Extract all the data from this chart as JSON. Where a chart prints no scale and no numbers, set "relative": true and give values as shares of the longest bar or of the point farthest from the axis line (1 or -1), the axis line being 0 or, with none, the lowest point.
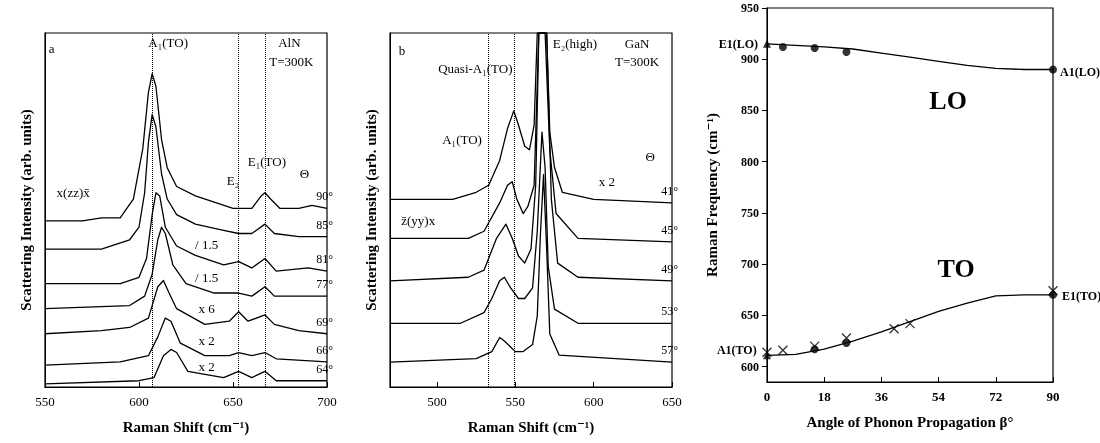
{
  "chart_data": [
    {
      "type": "line",
      "relative": true,
      "xlabel": "Raman Shift (cm⁻¹)",
      "ylabel": "Scattering Intensity (arb. units)",
      "xlim": [
        550,
        700
      ],
      "xticks": [
        550,
        600,
        650,
        700
      ],
      "ref_lines": [
        {
          "axis": "x",
          "value": 607,
          "label": null,
          "line_style": "dotted",
          "color": "#000000"
        },
        {
          "axis": "x",
          "value": 653,
          "label": null,
          "line_style": "dotted",
          "color": "#000000"
        },
        {
          "axis": "x",
          "value": 667,
          "label": null,
          "line_style": "dotted",
          "color": "#000000"
        }
      ],
      "annotations": [
        "a",
        "A₁(TO)",
        "AlN",
        "T=300K",
        "E₁(TO)",
        "E₂",
        "Θ",
        "x(zz)x̄",
        "/ 1.5",
        "/ 1.5",
        "x 6",
        "x 2",
        "x 2"
      ],
      "series": [
        {
          "name": "90°",
          "color": "#000000",
          "x": [
            550,
            570,
            580,
            590,
            597,
            602,
            605,
            607,
            609,
            612,
            615,
            620,
            630,
            640,
            650,
            653,
            660,
            665,
            667,
            670,
            675,
            685,
            692,
            700
          ],
          "values": [
            0.53,
            0.53,
            0.54,
            0.54,
            0.6,
            0.76,
            0.94,
            1.0,
            0.96,
            0.79,
            0.7,
            0.64,
            0.61,
            0.59,
            0.57,
            0.57,
            0.57,
            0.61,
            0.62,
            0.6,
            0.57,
            0.57,
            0.58,
            0.57
          ]
        },
        {
          "name": "85°",
          "color": "#000000",
          "x": [
            550,
            580,
            595,
            600,
            603,
            605,
            607,
            609,
            612,
            615,
            620,
            630,
            645,
            653,
            660,
            667,
            672,
            685,
            700
          ],
          "values": [
            0.44,
            0.44,
            0.47,
            0.51,
            0.62,
            0.78,
            0.87,
            0.83,
            0.68,
            0.6,
            0.55,
            0.52,
            0.5,
            0.49,
            0.49,
            0.52,
            0.49,
            0.48,
            0.48
          ]
        },
        {
          "name": "81°",
          "color": "#000000",
          "x": [
            550,
            590,
            600,
            604,
            607,
            609,
            611,
            614,
            620,
            630,
            645,
            653,
            660,
            667,
            673,
            690,
            700
          ],
          "values": [
            0.33,
            0.33,
            0.35,
            0.41,
            0.55,
            0.62,
            0.61,
            0.51,
            0.45,
            0.42,
            0.39,
            0.4,
            0.38,
            0.41,
            0.37,
            0.38,
            0.37
          ]
        },
        {
          "name": "77°",
          "color": "#000000",
          "x": [
            550,
            595,
            603,
            607,
            610,
            612,
            614,
            618,
            625,
            640,
            653,
            660,
            667,
            672,
            690,
            700
          ],
          "values": [
            0.25,
            0.26,
            0.29,
            0.36,
            0.47,
            0.51,
            0.49,
            0.39,
            0.33,
            0.3,
            0.3,
            0.29,
            0.32,
            0.29,
            0.29,
            0.29
          ]
        },
        {
          "name": "69°",
          "color": "#000000",
          "x": [
            550,
            580,
            595,
            605,
            610,
            613,
            616,
            620,
            635,
            648,
            653,
            658,
            667,
            672,
            685,
            700
          ],
          "values": [
            0.17,
            0.18,
            0.19,
            0.22,
            0.32,
            0.34,
            0.3,
            0.25,
            0.2,
            0.21,
            0.24,
            0.21,
            0.23,
            0.2,
            0.18,
            0.17
          ]
        },
        {
          "name": "66°",
          "color": "#000000",
          "x": [
            550,
            590,
            605,
            610,
            614,
            617,
            622,
            635,
            648,
            653,
            660,
            667,
            673,
            700
          ],
          "values": [
            0.07,
            0.08,
            0.1,
            0.16,
            0.22,
            0.21,
            0.14,
            0.1,
            0.1,
            0.11,
            0.1,
            0.11,
            0.09,
            0.08
          ]
        },
        {
          "name": "64°",
          "color": "#000000",
          "x": [
            550,
            600,
            608,
            613,
            617,
            620,
            626,
            645,
            653,
            660,
            667,
            673,
            700
          ],
          "values": [
            0.01,
            0.02,
            0.03,
            0.1,
            0.12,
            0.11,
            0.05,
            0.03,
            0.05,
            0.03,
            0.05,
            0.02,
            0.02
          ]
        }
      ]
    },
    {
      "type": "line",
      "relative": true,
      "xlabel": "Raman Shift (cm⁻¹)",
      "ylabel": "Scattering Intensity (arb. units)",
      "xlim": [
        470,
        650
      ],
      "xticks": [
        500,
        550,
        600,
        650
      ],
      "ref_lines": [
        {
          "axis": "x",
          "value": 533,
          "label": null,
          "line_style": "dotted",
          "color": "#000000"
        },
        {
          "axis": "x",
          "value": 549,
          "label": null,
          "line_style": "dotted",
          "color": "#000000"
        }
      ],
      "annotations": [
        "b",
        "E₂(high)",
        "GaN",
        "T=300K",
        "Quasi-A₁(TO)",
        "A₁(TO)",
        "Θ",
        "x 2",
        "z̄(yy)x"
      ],
      "series": [
        {
          "name": "41°",
          "color": "#000000",
          "x": [
            470,
            510,
            525,
            533,
            540,
            545,
            549,
            552,
            556,
            559,
            562,
            564,
            566,
            570,
            572,
            575,
            580,
            600,
            650
          ],
          "values": [
            0.53,
            0.53,
            0.55,
            0.57,
            0.64,
            0.73,
            0.78,
            0.74,
            0.68,
            0.67,
            0.74,
            1.0,
            1.0,
            1.0,
            0.72,
            0.62,
            0.55,
            0.53,
            0.52
          ]
        },
        {
          "name": "45°",
          "color": "#000000",
          "x": [
            470,
            520,
            530,
            540,
            545,
            548,
            551,
            555,
            558,
            562,
            565,
            569,
            572,
            576,
            590,
            650
          ],
          "values": [
            0.42,
            0.42,
            0.44,
            0.52,
            0.57,
            0.58,
            0.53,
            0.49,
            0.51,
            0.57,
            1.0,
            1.0,
            0.67,
            0.49,
            0.42,
            0.41
          ]
        },
        {
          "name": "49°",
          "color": "#000000",
          "x": [
            470,
            520,
            530,
            538,
            544,
            548,
            552,
            556,
            560,
            563,
            565,
            567,
            570,
            573,
            577,
            590,
            650
          ],
          "values": [
            0.3,
            0.31,
            0.33,
            0.42,
            0.46,
            0.42,
            0.37,
            0.35,
            0.39,
            0.57,
            1.0,
            1.0,
            1.0,
            0.53,
            0.35,
            0.31,
            0.3
          ]
        },
        {
          "name": "53°",
          "color": "#000000",
          "x": [
            470,
            515,
            530,
            535,
            540,
            543,
            547,
            552,
            556,
            561,
            564,
            567,
            569,
            571,
            575,
            590,
            650
          ],
          "values": [
            0.18,
            0.18,
            0.21,
            0.25,
            0.3,
            0.31,
            0.28,
            0.25,
            0.25,
            0.28,
            0.44,
            0.72,
            0.62,
            0.34,
            0.22,
            0.18,
            0.18
          ]
        },
        {
          "name": "57°",
          "color": "#000000",
          "x": [
            470,
            525,
            535,
            540,
            543,
            550,
            555,
            561,
            564,
            566,
            568,
            570,
            572,
            578,
            650
          ],
          "values": [
            0.07,
            0.08,
            0.1,
            0.14,
            0.13,
            0.1,
            0.1,
            0.12,
            0.2,
            0.43,
            0.6,
            0.39,
            0.15,
            0.09,
            0.07
          ]
        }
      ]
    },
    {
      "type": "line",
      "xlabel": "Angle of Phonon Propagation β°",
      "ylabel": "Raman Frequency (cm⁻¹)",
      "xlim": [
        0,
        90
      ],
      "xticks": [
        0,
        18,
        36,
        54,
        72,
        90
      ],
      "ylim": [
        585,
        950
      ],
      "yticks": [
        600,
        650,
        700,
        750,
        800,
        850,
        900,
        950
      ],
      "annotations": [
        "E1(LO)",
        "A1(LO)",
        "A1(TO)",
        "E1(TO)",
        "LO",
        "TO"
      ],
      "series": [
        {
          "marker": "none",
          "color": "#000000",
          "x": [
            0,
            18,
            27,
            36,
            45,
            54,
            63,
            72,
            81,
            90
          ],
          "values": [
            915,
            912,
            910,
            906,
            902,
            898,
            894,
            891,
            890,
            890
          ]
        },
        {
          "marker": "none",
          "color": "#000000",
          "x": [
            0,
            9,
            18,
            27,
            36,
            45,
            54,
            63,
            72,
            81,
            90
          ],
          "values": [
            611,
            612,
            617,
            625,
            634,
            644,
            654,
            662,
            669,
            670,
            670
          ]
        },
        {
          "type": "scatter",
          "marker": "triangle",
          "color": "#000000",
          "x": [
            0,
            0
          ],
          "values": [
            915,
            611
          ]
        },
        {
          "type": "scatter",
          "marker": "circle",
          "color": "#000000",
          "x": [
            5,
            15,
            25,
            90,
            15,
            25,
            90
          ],
          "values": [
            912,
            911,
            907,
            890,
            617,
            623,
            670
          ]
        },
        {
          "type": "scatter",
          "marker": "cross",
          "color": "#000000",
          "x": [
            0,
            5,
            15,
            25,
            40,
            45,
            90
          ],
          "values": [
            614,
            616,
            620,
            628,
            637,
            642,
            674
          ]
        }
      ]
    }
  ]
}
